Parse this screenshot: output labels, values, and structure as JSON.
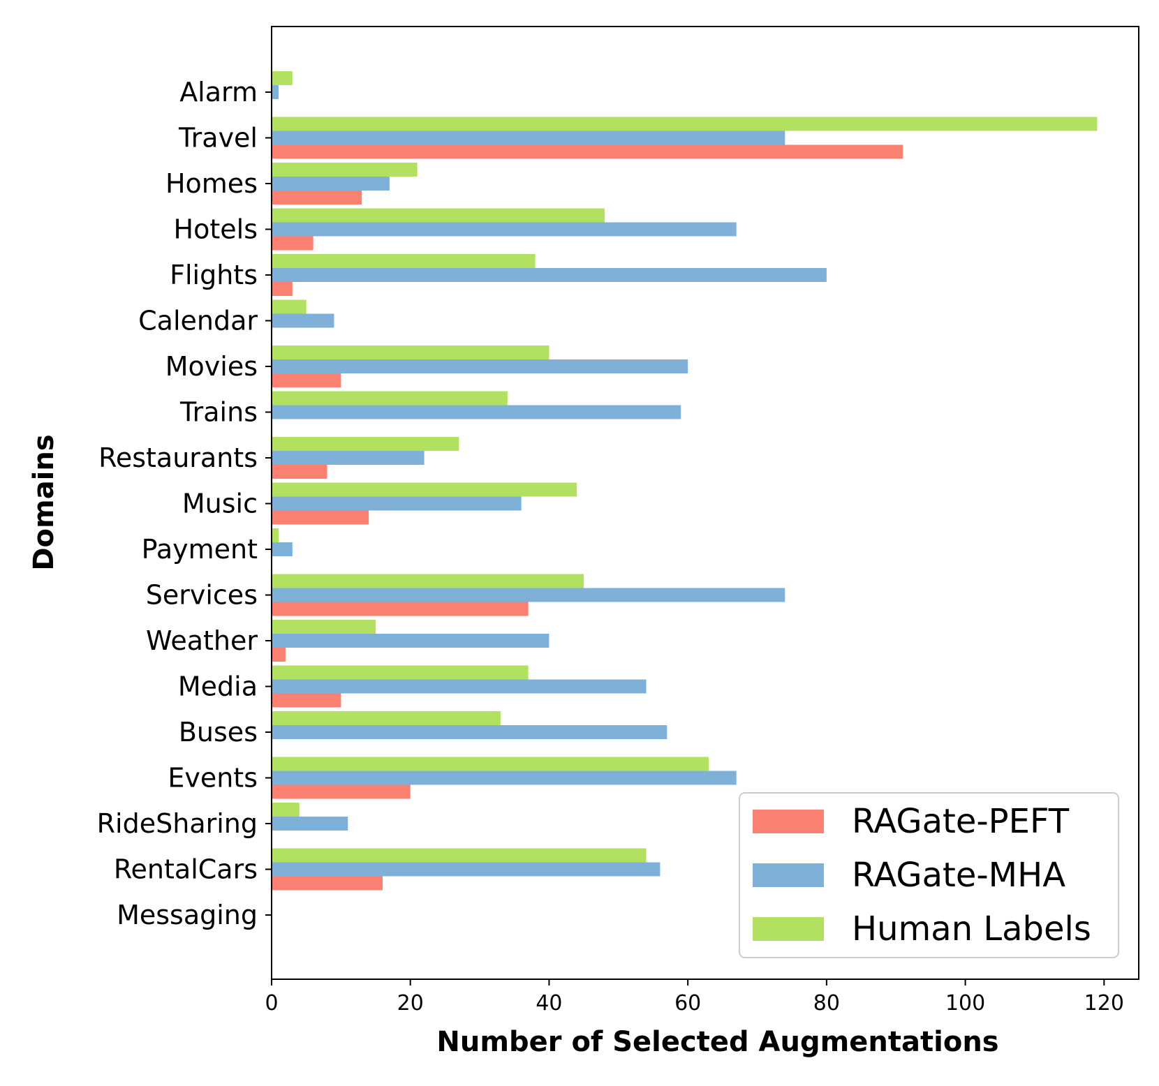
{
  "chart_data": {
    "type": "bar",
    "orientation": "horizontal",
    "title": "",
    "xlabel": "Number of Selected Augmentations",
    "ylabel": "Domains",
    "xlim": [
      0,
      125
    ],
    "xticks": [
      0,
      20,
      40,
      60,
      80,
      100,
      120
    ],
    "grid": false,
    "legend_position": "bottom-right",
    "categories": [
      "Alarm",
      "Travel",
      "Homes",
      "Hotels",
      "Flights",
      "Calendar",
      "Movies",
      "Trains",
      "Restaurants",
      "Music",
      "Payment",
      "Services",
      "Weather",
      "Media",
      "Buses",
      "Events",
      "RideSharing",
      "RentalCars",
      "Messaging"
    ],
    "series": [
      {
        "name": "RAGate-PEFT",
        "color": "#fa8072",
        "values": [
          0,
          91,
          13,
          6,
          3,
          0,
          10,
          0,
          8,
          14,
          0,
          37,
          2,
          10,
          0,
          20,
          0,
          16,
          0
        ]
      },
      {
        "name": "RAGate-MHA",
        "color": "#7eb0d8",
        "values": [
          1,
          74,
          17,
          67,
          80,
          9,
          60,
          59,
          22,
          36,
          3,
          74,
          40,
          54,
          57,
          67,
          11,
          56,
          0
        ]
      },
      {
        "name": "Human Labels",
        "color": "#b2e061",
        "values": [
          3,
          119,
          21,
          48,
          38,
          5,
          40,
          34,
          27,
          44,
          1,
          45,
          15,
          37,
          33,
          63,
          4,
          54,
          0
        ]
      }
    ]
  }
}
